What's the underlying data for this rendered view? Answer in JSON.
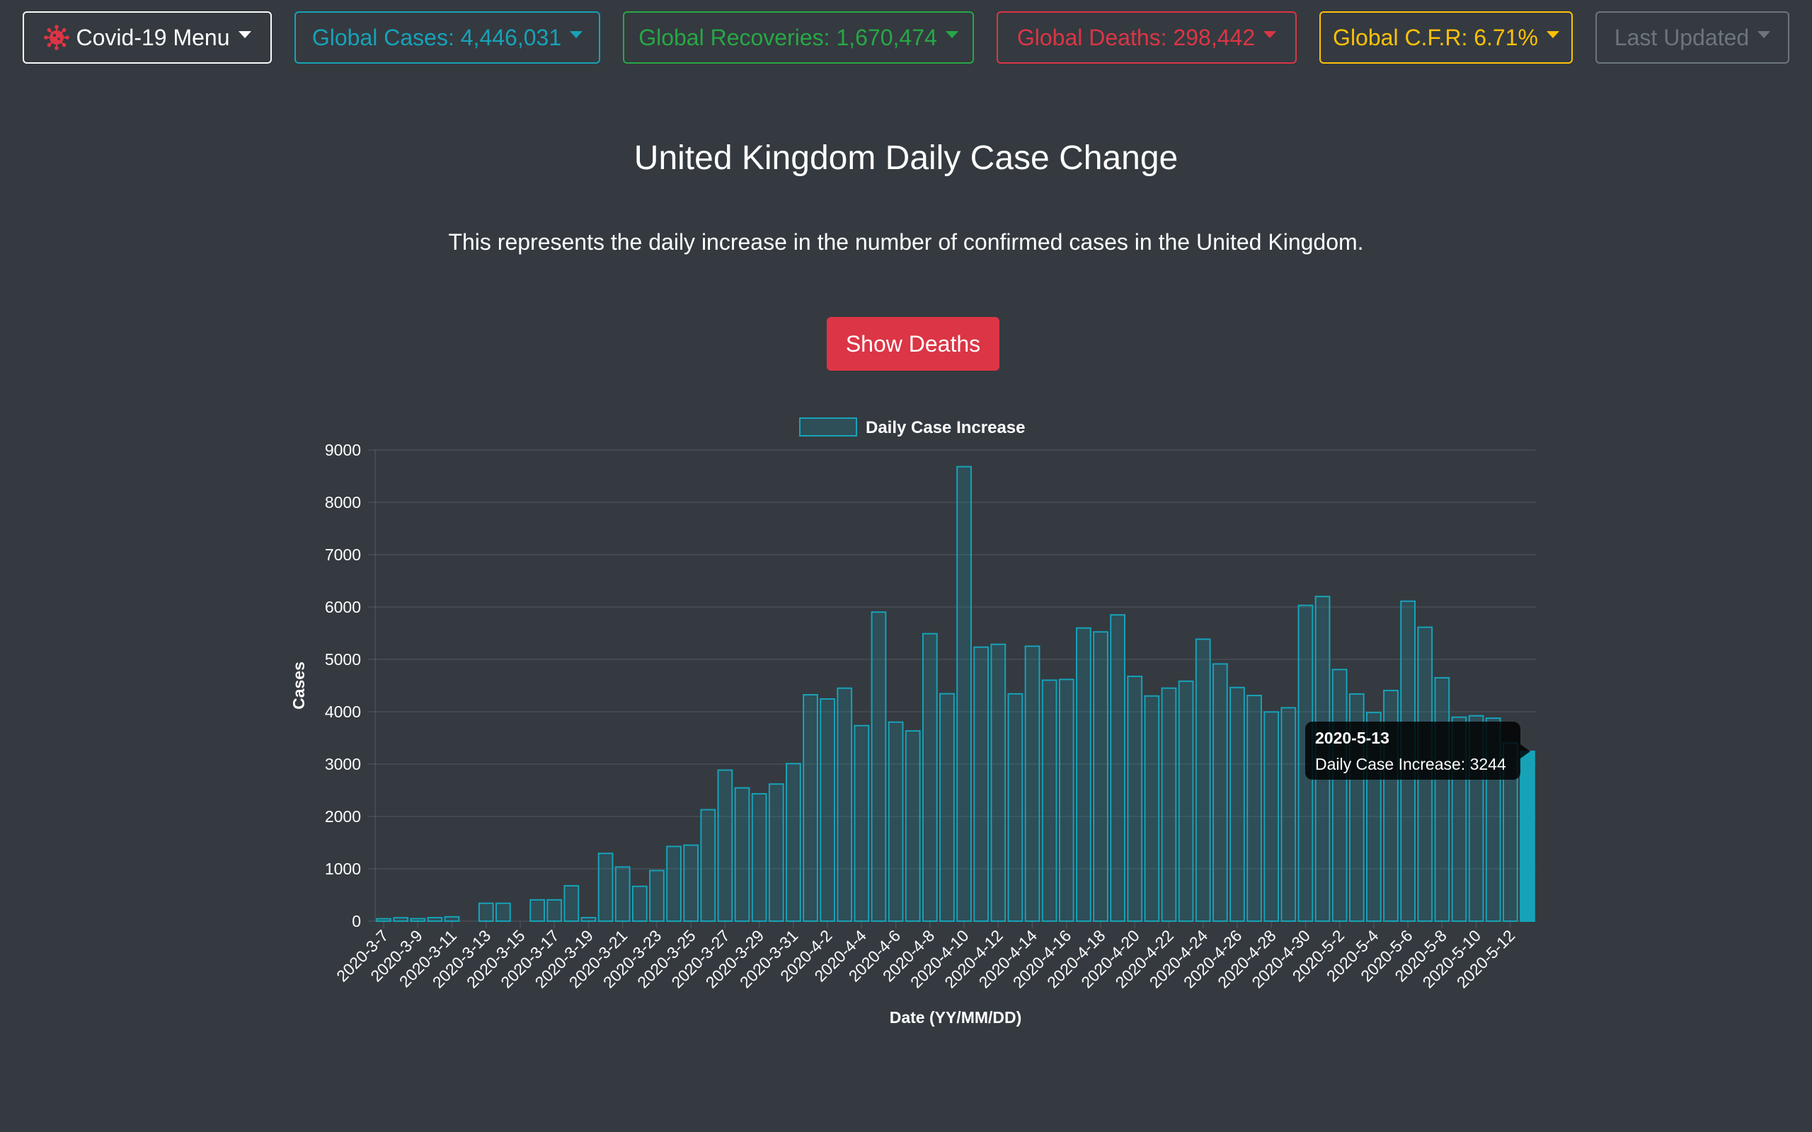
{
  "topbar": {
    "menu_label": "Covid-19 Menu",
    "global_cases": "Global Cases: 4,446,031",
    "global_recoveries": "Global Recoveries: 1,670,474",
    "global_deaths": "Global Deaths: 298,442",
    "global_cfr": "Global C.F.R: 6.71%",
    "last_updated": "Last Updated"
  },
  "page": {
    "title": "United Kingdom Daily Case Change",
    "subtitle": "This represents the daily increase in the number of confirmed cases in the United Kingdom.",
    "toggle_button": "Show Deaths"
  },
  "tooltip": {
    "title": "2020-5-13",
    "body": "Daily Case Increase: 3244"
  },
  "colors": {
    "bar_fill": "rgba(23,162,184,0.2)",
    "bar_stroke": "#17a2b8",
    "bar_highlight": "#17a2b8",
    "grid": "rgba(255,255,255,0.1)"
  },
  "chart_data": {
    "type": "bar",
    "legend": "Daily Case Increase",
    "legend_position": "top",
    "xlabel": "Date (YY/MM/DD)",
    "ylabel": "Cases",
    "ylim": [
      0,
      9000
    ],
    "yticks": [
      0,
      1000,
      2000,
      3000,
      4000,
      5000,
      6000,
      7000,
      8000,
      9000
    ],
    "grid": true,
    "highlighted": "2020-5-13",
    "categories": [
      "2020-3-7",
      "2020-3-8",
      "2020-3-9",
      "2020-3-10",
      "2020-3-11",
      "2020-3-12",
      "2020-3-13",
      "2020-3-14",
      "2020-3-15",
      "2020-3-16",
      "2020-3-17",
      "2020-3-18",
      "2020-3-19",
      "2020-3-20",
      "2020-3-21",
      "2020-3-22",
      "2020-3-23",
      "2020-3-24",
      "2020-3-25",
      "2020-3-26",
      "2020-3-27",
      "2020-3-28",
      "2020-3-29",
      "2020-3-30",
      "2020-3-31",
      "2020-4-1",
      "2020-4-2",
      "2020-4-3",
      "2020-4-4",
      "2020-4-5",
      "2020-4-6",
      "2020-4-7",
      "2020-4-8",
      "2020-4-9",
      "2020-4-10",
      "2020-4-11",
      "2020-4-12",
      "2020-4-13",
      "2020-4-14",
      "2020-4-15",
      "2020-4-16",
      "2020-4-17",
      "2020-4-18",
      "2020-4-19",
      "2020-4-20",
      "2020-4-21",
      "2020-4-22",
      "2020-4-23",
      "2020-4-24",
      "2020-4-25",
      "2020-4-26",
      "2020-4-27",
      "2020-4-28",
      "2020-4-29",
      "2020-4-30",
      "2020-5-1",
      "2020-5-2",
      "2020-5-3",
      "2020-5-4",
      "2020-5-5",
      "2020-5-6",
      "2020-5-7",
      "2020-5-8",
      "2020-5-9",
      "2020-5-10",
      "2020-5-11",
      "2020-5-12",
      "2020-5-13"
    ],
    "values": [
      46,
      65,
      48,
      67,
      83,
      0,
      342,
      342,
      0,
      407,
      407,
      676,
      67,
      1294,
      1035,
      665,
      967,
      1427,
      1452,
      2129,
      2885,
      2546,
      2433,
      2619,
      3009,
      4324,
      4244,
      4450,
      3735,
      5903,
      3802,
      3634,
      5491,
      4344,
      8681,
      5234,
      5288,
      4342,
      5252,
      4603,
      4617,
      5599,
      5525,
      5850,
      4676,
      4301,
      4451,
      4583,
      5386,
      4913,
      4463,
      4310,
      3996,
      4076,
      6032,
      6201,
      4806,
      4339,
      3985,
      4406,
      6111,
      5614,
      4649,
      3896,
      3923,
      3877,
      3403,
      3244
    ]
  }
}
